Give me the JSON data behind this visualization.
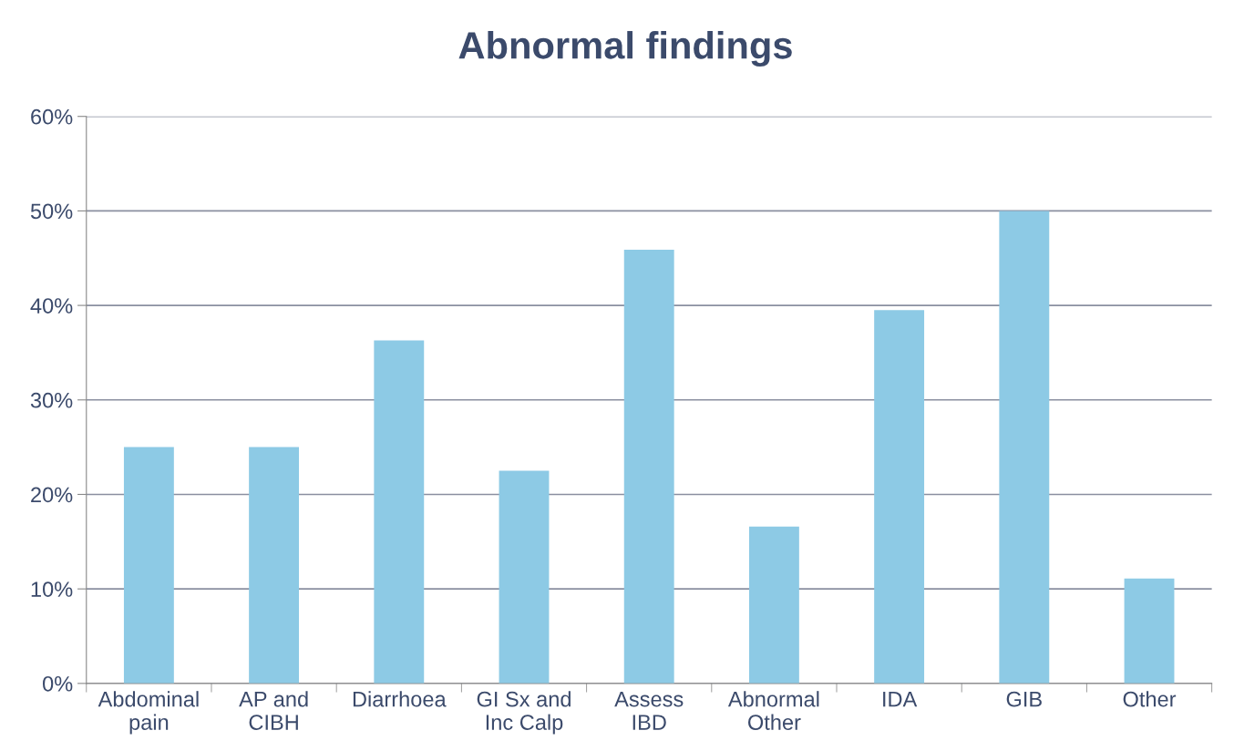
{
  "chart_data": {
    "type": "bar",
    "title": "Abnormal findings",
    "categories": [
      "Abdominal\npain",
      "AP and\nCIBH",
      "Diarrhoea",
      "GI Sx and\nInc Calp",
      "Assess\nIBD",
      "Abnormal\nOther",
      "IDA",
      "GIB",
      "Other"
    ],
    "values": [
      25,
      25,
      36.3,
      22.5,
      45.9,
      16.6,
      39.5,
      50,
      11.1
    ],
    "color": "#8dcae5",
    "ylim": [
      0,
      60
    ],
    "yticks": [
      {
        "value": 0,
        "label": "0%"
      },
      {
        "value": 10,
        "label": "10%"
      },
      {
        "value": 20,
        "label": "20%"
      },
      {
        "value": 30,
        "label": "30%"
      },
      {
        "value": 40,
        "label": "40%"
      },
      {
        "value": 50,
        "label": "50%"
      },
      {
        "value": 60,
        "label": "60%"
      }
    ],
    "grid": "y"
  }
}
